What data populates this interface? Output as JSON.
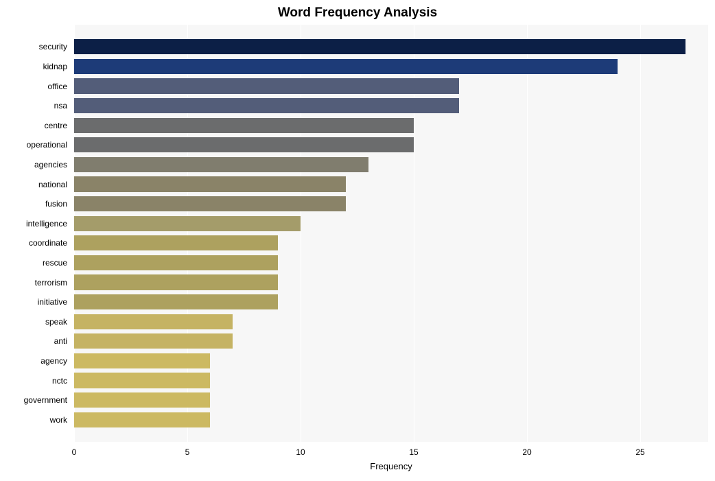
{
  "chart": {
    "type": "bar-horizontal",
    "title": "Word Frequency Analysis",
    "title_fontsize": 19,
    "title_fontweight": "bold",
    "xlabel": "Frequency",
    "xlabel_fontsize": 13,
    "ylabel_fontsize": 12,
    "background_color": "#ffffff",
    "plot_bg_color": "#f7f7f7",
    "grid_color": "#ffffff",
    "xlim": [
      0,
      28
    ],
    "xtick_step": 5,
    "xticks": [
      0,
      5,
      10,
      15,
      20,
      25
    ],
    "bar_height_ratio": 0.77,
    "words": [
      "security",
      "kidnap",
      "office",
      "nsa",
      "centre",
      "operational",
      "agencies",
      "national",
      "fusion",
      "intelligence",
      "coordinate",
      "rescue",
      "terrorism",
      "initiative",
      "speak",
      "anti",
      "agency",
      "nctc",
      "government",
      "work"
    ],
    "values": [
      27,
      24,
      17,
      17,
      15,
      15,
      13,
      12,
      12,
      10,
      9,
      9,
      9,
      9,
      7,
      7,
      6,
      6,
      6,
      6
    ],
    "bar_colors": [
      "#0c1f46",
      "#1d3b78",
      "#535d79",
      "#535d79",
      "#6b6c6d",
      "#6b6c6d",
      "#807d6e",
      "#8a8368",
      "#8a8368",
      "#a49c6a",
      "#ada15f",
      "#ada15f",
      "#ada15f",
      "#ada15f",
      "#c5b363",
      "#c5b363",
      "#ccb962",
      "#ccb962",
      "#ccb962",
      "#ccb962"
    ]
  }
}
